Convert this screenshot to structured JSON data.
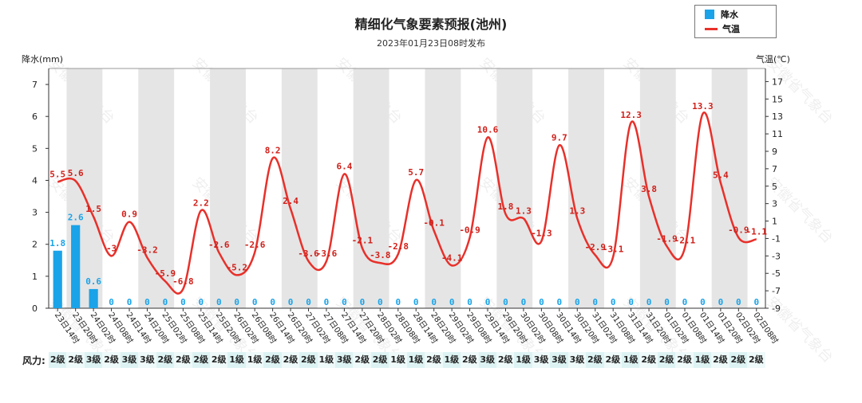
{
  "watermark": "安徽省气象台",
  "chart_data": {
    "type": "bar+line",
    "title": "精细化气象要素预报(池州)",
    "subtitle": "2023年01月23日08时发布",
    "legend": {
      "bar": "降水",
      "line": "气温"
    },
    "colors": {
      "bar": "#1aa3e8",
      "line": "#e8302a",
      "band": "#e5e5e5",
      "zero_label": "#1aa3e8",
      "bar_label": "#1aa3e8",
      "temp_label": "#d0201a"
    },
    "ylabel_left": "降水(mm)",
    "ylabel_right": "气温(℃)",
    "y_left": {
      "min": 0,
      "max": 7.5,
      "ticks": [
        0,
        1,
        2,
        3,
        4,
        5,
        6,
        7
      ]
    },
    "y_right": {
      "min": -9,
      "max": 18.5,
      "ticks": [
        -9,
        -7,
        -5,
        -3,
        -1,
        1,
        3,
        5,
        7,
        9,
        11,
        13,
        15,
        17
      ]
    },
    "categories": [
      "23日14时",
      "23日20时",
      "24日02时",
      "24日08时",
      "24日14时",
      "24日20时",
      "25日02时",
      "25日08时",
      "25日14时",
      "25日20时",
      "26日02时",
      "26日08时",
      "26日14时",
      "26日20时",
      "27日02时",
      "27日08时",
      "27日14时",
      "27日20时",
      "28日02时",
      "28日08时",
      "28日14时",
      "28日20时",
      "29日02时",
      "29日08时",
      "29日14时",
      "29日20时",
      "30日02时",
      "30日08时",
      "30日14时",
      "30日20时",
      "31日02时",
      "31日08时",
      "31日14时",
      "31日20时",
      "01日02时",
      "01日08时",
      "01日14时",
      "01日20时",
      "02日02时",
      "02日08时"
    ],
    "precipitation": [
      1.8,
      2.6,
      0.6,
      0,
      0,
      0,
      0,
      0,
      0,
      0,
      0,
      0,
      0,
      0,
      0,
      0,
      0,
      0,
      0,
      0,
      0,
      0,
      0,
      0,
      0,
      0,
      0,
      0,
      0,
      0,
      0,
      0,
      0,
      0,
      0,
      0,
      0,
      0,
      0,
      0
    ],
    "temperature": [
      5.5,
      5.6,
      1.5,
      -3,
      0.9,
      -3.2,
      -5.9,
      -6.8,
      2.2,
      -2.6,
      -5.2,
      -2.6,
      8.2,
      2.4,
      -3.6,
      -3.6,
      6.4,
      -2.1,
      -3.8,
      -2.8,
      5.7,
      -0.1,
      -4.1,
      -0.9,
      10.6,
      1.8,
      1.3,
      -1.3,
      9.7,
      1.3,
      -2.9,
      -3.1,
      12.3,
      3.8,
      -1.9,
      -2.1,
      13.3,
      5.4,
      -0.9,
      -1.1
    ],
    "temperature_labels": [
      "5.5",
      "5.6",
      "1.5",
      "-3",
      "0.9",
      "-3.2",
      "-5.9",
      "-6.8",
      "2.2",
      "-2.6",
      "-5.2",
      "-2.6",
      "8.2",
      "2.4",
      "-3.6",
      "-3.6",
      "6.4",
      "-2.1",
      "-3.8",
      "-2.8",
      "5.7",
      "-0.1",
      "-4.1",
      "-0.9",
      "10.6",
      "1.8",
      "1.3",
      "-1.3",
      "9.7",
      "1.3",
      "-2.9",
      "-3.1",
      "12.3",
      "3.8",
      "-1.9",
      "-2.1",
      "13.3",
      "5.4",
      "-0.9",
      "-1.1"
    ],
    "wind_label": "风力:",
    "wind": [
      "2级",
      "2级",
      "3级",
      "2级",
      "3级",
      "3级",
      "2级",
      "2级",
      "2级",
      "2级",
      "1级",
      "1级",
      "2级",
      "2级",
      "2级",
      "1级",
      "3级",
      "2级",
      "2级",
      "1级",
      "1级",
      "2级",
      "1级",
      "2级",
      "3级",
      "2级",
      "1级",
      "3级",
      "3级",
      "3级",
      "2级",
      "2级",
      "1级",
      "2级",
      "2级",
      "2级",
      "1级",
      "2级",
      "2级",
      "2级"
    ]
  }
}
